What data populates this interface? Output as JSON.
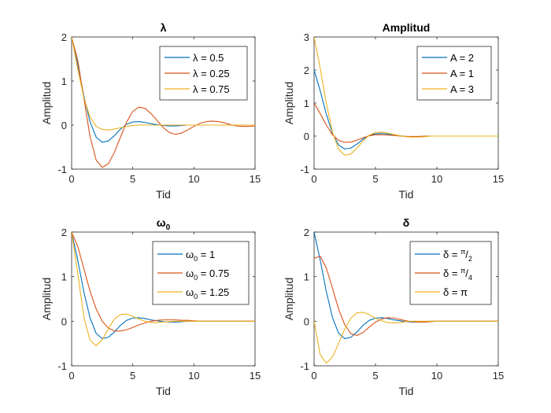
{
  "chart_data": [
    {
      "type": "line",
      "title": "λ",
      "xlabel": "Tid",
      "ylabel": "Amplitud",
      "xlim": [
        0,
        15
      ],
      "ylim": [
        -1,
        2
      ],
      "xticks": [
        0,
        5,
        10,
        15
      ],
      "yticks": [
        -1,
        0,
        1,
        2
      ],
      "legend_position": "top-right",
      "series": [
        {
          "name": "λ = 0.5",
          "color": "#0072BD",
          "x": [
            0,
            0.5,
            1,
            1.5,
            2,
            2.5,
            3,
            3.5,
            4,
            4.5,
            5,
            5.5,
            6,
            6.5,
            7,
            7.5,
            8,
            8.5,
            9,
            9.5,
            10,
            10.5,
            11,
            11.5,
            12,
            12.5,
            13,
            13.5,
            14,
            14.5,
            15
          ],
          "y": [
            2,
            1.37,
            0.66,
            0.08,
            -0.27,
            -0.39,
            -0.36,
            -0.24,
            -0.09,
            0.02,
            0.07,
            0.08,
            0.06,
            0.03,
            0.01,
            -0.01,
            -0.02,
            -0.02,
            -0.01,
            0,
            0,
            0,
            0,
            0,
            0,
            0,
            0,
            0,
            0,
            0,
            0
          ]
        },
        {
          "name": "λ = 0.25",
          "color": "#D95319",
          "x": [
            0,
            0.5,
            1,
            1.5,
            2,
            2.5,
            3,
            3.5,
            4,
            4.5,
            5,
            5.5,
            6,
            6.5,
            7,
            7.5,
            8,
            8.5,
            9,
            9.5,
            10,
            10.5,
            11,
            11.5,
            12,
            12.5,
            13,
            13.5,
            14,
            14.5,
            15
          ],
          "y": [
            2,
            1.47,
            0.61,
            -0.25,
            -0.79,
            -0.96,
            -0.88,
            -0.62,
            -0.27,
            0.07,
            0.31,
            0.41,
            0.38,
            0.26,
            0.1,
            -0.06,
            -0.17,
            -0.21,
            -0.18,
            -0.11,
            -0.03,
            0.04,
            0.08,
            0.09,
            0.08,
            0.05,
            0.01,
            -0.02,
            -0.03,
            -0.03,
            -0.02
          ]
        },
        {
          "name": "λ = 0.75",
          "color": "#EDB120",
          "x": [
            0,
            0.5,
            1,
            1.5,
            2,
            2.5,
            3,
            3.5,
            4,
            4.5,
            5,
            5.5,
            6,
            6.5,
            7,
            7.5,
            8,
            8.5,
            9,
            9.5,
            10,
            10.5,
            11,
            11.5,
            12,
            12.5,
            13,
            13.5,
            14,
            14.5,
            15
          ],
          "y": [
            2,
            1.27,
            0.62,
            0.19,
            -0.03,
            -0.1,
            -0.11,
            -0.09,
            -0.06,
            -0.03,
            -0.01,
            0,
            0,
            0,
            0,
            0,
            0,
            0,
            0,
            0,
            0,
            0,
            0,
            0,
            0,
            0,
            0,
            0,
            0,
            0,
            0
          ]
        }
      ]
    },
    {
      "type": "line",
      "title": "Amplitud",
      "xlabel": "Tid",
      "ylabel": "Amplitud",
      "xlim": [
        0,
        15
      ],
      "ylim": [
        -1,
        3
      ],
      "xticks": [
        0,
        5,
        10,
        15
      ],
      "yticks": [
        -1,
        0,
        1,
        2,
        3
      ],
      "legend_position": "top-right",
      "series": [
        {
          "name": "A = 2",
          "color": "#0072BD",
          "x": [
            0,
            0.5,
            1,
            1.5,
            2,
            2.5,
            3,
            3.5,
            4,
            4.5,
            5,
            5.5,
            6,
            6.5,
            7,
            7.5,
            8,
            8.5,
            9,
            9.5,
            10,
            10.5,
            11,
            11.5,
            12,
            12.5,
            13,
            13.5,
            14,
            14.5,
            15
          ],
          "y": [
            2,
            1.37,
            0.66,
            0.08,
            -0.27,
            -0.39,
            -0.36,
            -0.24,
            -0.09,
            0.02,
            0.07,
            0.08,
            0.06,
            0.03,
            0.01,
            -0.01,
            -0.02,
            -0.02,
            -0.01,
            0,
            0,
            0,
            0,
            0,
            0,
            0,
            0,
            0,
            0,
            0,
            0
          ]
        },
        {
          "name": "A = 1",
          "color": "#D95319",
          "x": [
            0,
            0.5,
            1,
            1.5,
            2,
            2.5,
            3,
            3.5,
            4,
            4.5,
            5,
            5.5,
            6,
            6.5,
            7,
            7.5,
            8,
            8.5,
            9,
            9.5,
            10,
            10.5,
            11,
            11.5,
            12,
            12.5,
            13,
            13.5,
            14,
            14.5,
            15
          ],
          "y": [
            1,
            0.68,
            0.33,
            0.04,
            -0.13,
            -0.19,
            -0.18,
            -0.12,
            -0.05,
            0.01,
            0.04,
            0.04,
            0.03,
            0.02,
            0,
            -0.01,
            -0.01,
            -0.01,
            0,
            0,
            0,
            0,
            0,
            0,
            0,
            0,
            0,
            0,
            0,
            0,
            0
          ]
        },
        {
          "name": "A = 3",
          "color": "#EDB120",
          "x": [
            0,
            0.5,
            1,
            1.5,
            2,
            2.5,
            3,
            3.5,
            4,
            4.5,
            5,
            5.5,
            6,
            6.5,
            7,
            7.5,
            8,
            8.5,
            9,
            9.5,
            10,
            10.5,
            11,
            11.5,
            12,
            12.5,
            13,
            13.5,
            14,
            14.5,
            15
          ],
          "y": [
            3,
            2.05,
            0.99,
            0.12,
            -0.4,
            -0.58,
            -0.54,
            -0.36,
            -0.14,
            0.03,
            0.11,
            0.12,
            0.09,
            0.05,
            0.01,
            -0.02,
            -0.03,
            -0.03,
            -0.02,
            0,
            0,
            0,
            0,
            0,
            0,
            0,
            0,
            0,
            0,
            0,
            0
          ]
        }
      ]
    },
    {
      "type": "line",
      "title": "ω",
      "title_subscript": "0",
      "xlabel": "Tid",
      "ylabel": "Amplitud",
      "xlim": [
        0,
        15
      ],
      "ylim": [
        -1,
        2
      ],
      "xticks": [
        0,
        5,
        10,
        15
      ],
      "yticks": [
        -1,
        0,
        1,
        2
      ],
      "legend_position": "top-right",
      "series": [
        {
          "name": "ω",
          "name_sub": "0",
          "name_rest": " = 1",
          "color": "#0072BD",
          "x": [
            0,
            0.5,
            1,
            1.5,
            2,
            2.5,
            3,
            3.5,
            4,
            4.5,
            5,
            5.5,
            6,
            6.5,
            7,
            7.5,
            8,
            8.5,
            9,
            9.5,
            10,
            10.5,
            11,
            11.5,
            12,
            12.5,
            13,
            13.5,
            14,
            14.5,
            15
          ],
          "y": [
            2,
            1.37,
            0.66,
            0.08,
            -0.27,
            -0.39,
            -0.36,
            -0.24,
            -0.09,
            0.02,
            0.07,
            0.08,
            0.06,
            0.03,
            0.01,
            -0.01,
            -0.02,
            -0.02,
            -0.01,
            0,
            0,
            0,
            0,
            0,
            0,
            0,
            0,
            0,
            0,
            0,
            0
          ]
        },
        {
          "name": "ω",
          "name_sub": "0",
          "name_rest": " = 0.75",
          "color": "#D95319",
          "x": [
            0,
            0.5,
            1,
            1.5,
            2,
            2.5,
            3,
            3.5,
            4,
            4.5,
            5,
            5.5,
            6,
            6.5,
            7,
            7.5,
            8,
            8.5,
            9,
            9.5,
            10,
            10.5,
            11,
            11.5,
            12,
            12.5,
            13,
            13.5,
            14,
            14.5,
            15
          ],
          "y": [
            2,
            1.68,
            1.18,
            0.68,
            0.28,
            0,
            -0.15,
            -0.22,
            -0.22,
            -0.19,
            -0.14,
            -0.08,
            -0.04,
            0,
            0.02,
            0.03,
            0.03,
            0.03,
            0.02,
            0.02,
            0.01,
            0,
            0,
            0,
            0,
            0,
            0,
            0,
            0,
            0,
            0
          ]
        },
        {
          "name": "ω",
          "name_sub": "0",
          "name_rest": " = 1.25",
          "color": "#EDB120",
          "x": [
            0,
            0.5,
            1,
            1.5,
            2,
            2.5,
            3,
            3.5,
            4,
            4.5,
            5,
            5.5,
            6,
            6.5,
            7,
            7.5,
            8,
            8.5,
            9,
            9.5,
            10,
            10.5,
            11,
            11.5,
            12,
            12.5,
            13,
            13.5,
            14,
            14.5,
            15
          ],
          "y": [
            2,
            1.08,
            0.09,
            -0.42,
            -0.55,
            -0.42,
            -0.17,
            0.05,
            0.15,
            0.16,
            0.11,
            0.05,
            0,
            -0.03,
            -0.03,
            -0.02,
            -0.01,
            0,
            0,
            0,
            0,
            0,
            0,
            0,
            0,
            0,
            0,
            0,
            0,
            0,
            0
          ]
        }
      ]
    },
    {
      "type": "line",
      "title": "δ",
      "xlabel": "Tid",
      "ylabel": "Amplitud",
      "xlim": [
        0,
        15
      ],
      "ylim": [
        -1,
        2
      ],
      "xticks": [
        0,
        5,
        10,
        15
      ],
      "yticks": [
        -1,
        0,
        1,
        2
      ],
      "legend_position": "top-right",
      "series": [
        {
          "name": "δ = ",
          "name_frac_num": "π",
          "name_frac_den": "2",
          "color": "#0072BD",
          "x": [
            0,
            0.5,
            1,
            1.5,
            2,
            2.5,
            3,
            3.5,
            4,
            4.5,
            5,
            5.5,
            6,
            6.5,
            7,
            7.5,
            8,
            8.5,
            9,
            9.5,
            10,
            10.5,
            11,
            11.5,
            12,
            12.5,
            13,
            13.5,
            14,
            14.5,
            15
          ],
          "y": [
            2,
            1.37,
            0.66,
            0.08,
            -0.27,
            -0.39,
            -0.36,
            -0.24,
            -0.09,
            0.02,
            0.07,
            0.08,
            0.06,
            0.03,
            0.01,
            -0.01,
            -0.02,
            -0.02,
            -0.01,
            0,
            0,
            0,
            0,
            0,
            0,
            0,
            0,
            0,
            0,
            0,
            0
          ]
        },
        {
          "name": "δ = ",
          "name_frac_num": "π",
          "name_frac_den": "4",
          "color": "#D95319",
          "x": [
            0,
            0.5,
            1,
            1.5,
            2,
            2.5,
            3,
            3.5,
            4,
            4.5,
            5,
            5.5,
            6,
            6.5,
            7,
            7.5,
            8,
            8.5,
            9,
            9.5,
            10,
            10.5,
            11,
            11.5,
            12,
            12.5,
            13,
            13.5,
            14,
            14.5,
            15
          ],
          "y": [
            1.41,
            1.46,
            1.19,
            0.74,
            0.27,
            -0.08,
            -0.28,
            -0.32,
            -0.25,
            -0.13,
            -0.02,
            0.05,
            0.08,
            0.07,
            0.04,
            0.01,
            -0.01,
            -0.02,
            -0.02,
            -0.01,
            0,
            0,
            0,
            0,
            0,
            0,
            0,
            0,
            0,
            0,
            0
          ]
        },
        {
          "name": "δ = π",
          "color": "#EDB120",
          "x": [
            0,
            0.5,
            1,
            1.5,
            2,
            2.5,
            3,
            3.5,
            4,
            4.5,
            5,
            5.5,
            6,
            6.5,
            7,
            7.5,
            8,
            8.5,
            9,
            9.5,
            10,
            10.5,
            11,
            11.5,
            12,
            12.5,
            13,
            13.5,
            14,
            14.5,
            15
          ],
          "y": [
            0,
            -0.75,
            -0.94,
            -0.8,
            -0.5,
            -0.17,
            0.07,
            0.19,
            0.2,
            0.15,
            0.07,
            0.01,
            -0.03,
            -0.04,
            -0.03,
            -0.01,
            0,
            0,
            0,
            0,
            0,
            0,
            0,
            0,
            0,
            0,
            0,
            0,
            0,
            0,
            0
          ]
        }
      ]
    }
  ]
}
